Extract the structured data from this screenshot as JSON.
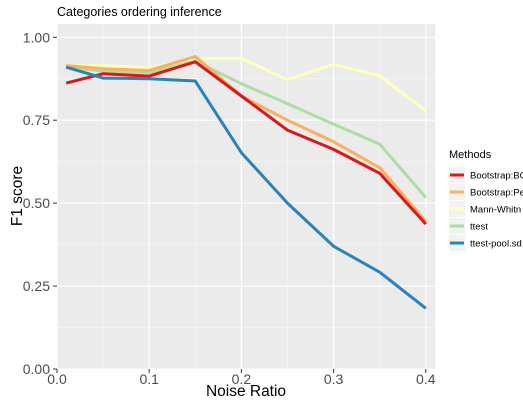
{
  "chart_data": {
    "type": "line",
    "title": "Categories ordering inference",
    "xlabel": "Noise Ratio",
    "ylabel": "F1 score",
    "xlim": [
      0,
      0.41
    ],
    "ylim": [
      0,
      1.04
    ],
    "x_ticks": [
      0.0,
      0.1,
      0.2,
      0.3,
      0.4
    ],
    "x_tick_labels": [
      "0.0",
      "0.1",
      "0.2",
      "0.3",
      "0.4"
    ],
    "y_ticks": [
      0.0,
      0.25,
      0.5,
      0.75,
      1.0
    ],
    "y_tick_labels": [
      "0.00",
      "0.25",
      "0.50",
      "0.75",
      "1.00"
    ],
    "grid": true,
    "legend_title": "Methods",
    "legend_position": "right",
    "series": [
      {
        "name": "Mann-Whitn",
        "color": "#ffffbf",
        "x": [
          0.01,
          0.05,
          0.1,
          0.15,
          0.2,
          0.25,
          0.3,
          0.35,
          0.4
        ],
        "y": [
          0.915,
          0.915,
          0.908,
          0.935,
          0.937,
          0.872,
          0.918,
          0.884,
          0.778
        ]
      },
      {
        "name": "ttest",
        "color": "#abdda4",
        "x": [
          0.01,
          0.05,
          0.1,
          0.15,
          0.2,
          0.25,
          0.3,
          0.35,
          0.4
        ],
        "y": [
          0.91,
          0.898,
          0.893,
          0.928,
          0.86,
          0.8,
          0.738,
          0.678,
          0.517
        ]
      },
      {
        "name": "Bootstrap:Pe",
        "color": "#fdae61",
        "x": [
          0.01,
          0.05,
          0.1,
          0.15,
          0.2,
          0.25,
          0.3,
          0.35,
          0.4
        ],
        "y": [
          0.915,
          0.905,
          0.9,
          0.942,
          0.823,
          0.75,
          0.685,
          0.607,
          0.445
        ]
      },
      {
        "name": "Bootstrap:BC",
        "color": "#d7191c",
        "x": [
          0.01,
          0.05,
          0.1,
          0.15,
          0.2,
          0.25,
          0.3,
          0.35,
          0.4
        ],
        "y": [
          0.862,
          0.89,
          0.883,
          0.926,
          0.823,
          0.72,
          0.662,
          0.59,
          0.437
        ]
      },
      {
        "name": "ttest-pool.sd",
        "color": "#2b83ba",
        "x": [
          0.01,
          0.05,
          0.1,
          0.15,
          0.2,
          0.25,
          0.3,
          0.35,
          0.4
        ],
        "y": [
          0.91,
          0.877,
          0.875,
          0.868,
          0.652,
          0.5,
          0.37,
          0.292,
          0.183
        ]
      }
    ],
    "legend_order": [
      "Bootstrap:BC",
      "Bootstrap:Pe",
      "Mann-Whitn",
      "ttest",
      "ttest-pool.sd"
    ]
  }
}
